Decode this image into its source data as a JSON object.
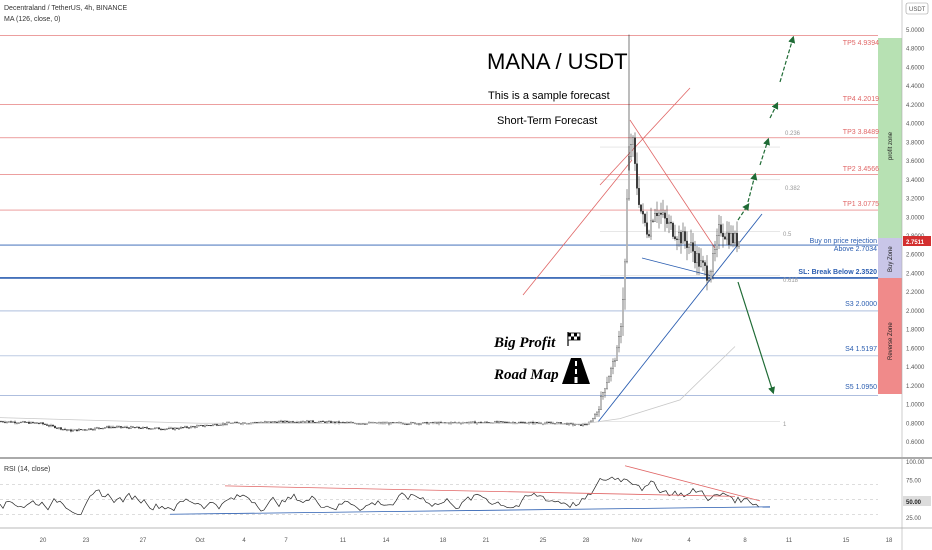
{
  "header": {
    "symbol_line": "Decentraland / TetherUS, 4h, BINANCE",
    "ma_line": "MA (126, close, 0)",
    "rsi_line": "RSI (14, close)",
    "currency": "USDT"
  },
  "annotations": {
    "title": "MANA / USDT",
    "sample": "This is a sample forecast",
    "short_term": "Short-Term Forecast",
    "big_profit": "Big Profit",
    "road_map": "Road Map",
    "buy_on_rejection": "Buy on price rejection",
    "above_level": "Above 2.7034",
    "sl_label": "SL: Break Below 2.3520"
  },
  "zones": {
    "profit": "profit zone",
    "buy": "Buy Zone",
    "reverse": "Reverse Zone"
  },
  "current_price": "2.7511",
  "colors": {
    "tp_red": "#e06666",
    "support_blue": "#2a5db0",
    "profit_green": "#b7e1b3",
    "buy_purple": "#c9c6e8",
    "reverse_red": "#f08a8a",
    "arrow_green": "#1f6b35",
    "candle": "#222222"
  },
  "chart_data": [
    {
      "type": "candlestick",
      "title": "Decentraland / TetherUS, 4h, BINANCE",
      "ylim": [
        0.5,
        5.0
      ],
      "y_ticks": [
        "5.0000",
        "4.8000",
        "4.6000",
        "4.4000",
        "4.2000",
        "4.0000",
        "3.8000",
        "3.6000",
        "3.4000",
        "3.2000",
        "3.0000",
        "2.8000",
        "2.6000",
        "2.4000",
        "2.2000",
        "2.0000",
        "1.8000",
        "1.6000",
        "1.4000",
        "1.2000",
        "1.0000",
        "0.8000",
        "0.6000"
      ],
      "x_ticks": [
        "20",
        "23",
        "27",
        "Oct",
        "4",
        "7",
        "11",
        "14",
        "18",
        "21",
        "25",
        "28",
        "Nov",
        "4",
        "8",
        "11",
        "15",
        "18"
      ],
      "levels": [
        {
          "name": "TP5",
          "label": "TP5 4.9394",
          "value": 4.9394
        },
        {
          "name": "TP4",
          "label": "TP4 4.2019",
          "value": 4.2019
        },
        {
          "name": "TP3",
          "label": "TP3 3.8489",
          "value": 3.8489
        },
        {
          "name": "TP2",
          "label": "TP2 3.4566",
          "value": 3.4566
        },
        {
          "name": "TP1",
          "label": "TP1 3.0775",
          "value": 3.0775
        },
        {
          "name": "S3",
          "label": "S3 2.0000",
          "value": 2.0
        },
        {
          "name": "S4",
          "label": "S4 1.5197",
          "value": 1.5197
        },
        {
          "name": "S5",
          "label": "S5 1.0950",
          "value": 1.095
        }
      ],
      "entry_level": 2.7034,
      "stop_level": 2.352,
      "fib_labels": [
        "0.236",
        "0.382",
        "0.5",
        "0.618",
        "1"
      ],
      "fib_values": [
        3.75,
        3.4,
        2.85,
        2.38,
        0.82
      ]
    },
    {
      "type": "line",
      "title": "RSI (14, close)",
      "ylim": [
        10,
        100
      ],
      "y_ticks": [
        "100.00",
        "75.00",
        "50.00",
        "25.00"
      ],
      "current_value": "50.00"
    }
  ]
}
